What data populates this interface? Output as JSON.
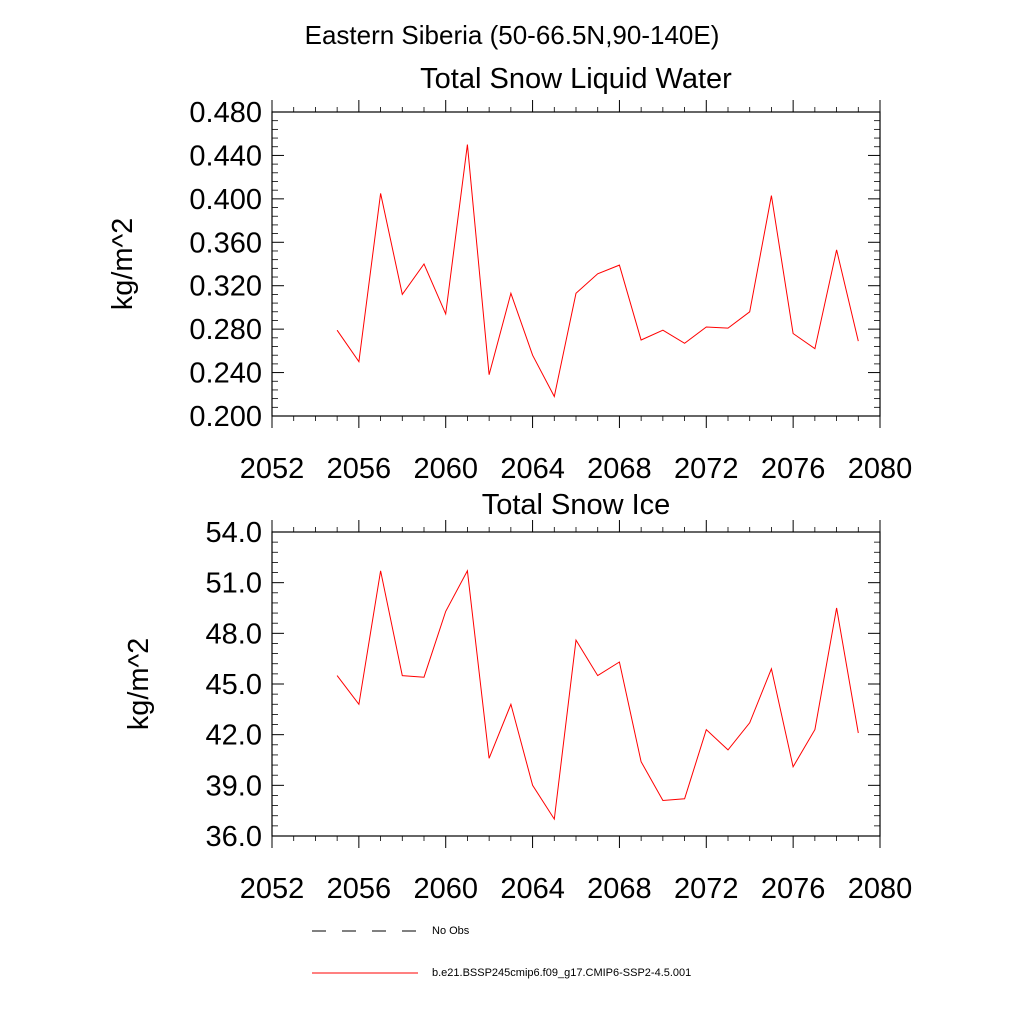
{
  "figure": {
    "title": "Eastern Siberia (50-66.5N,90-140E)"
  },
  "legend": {
    "placement": "bottom",
    "entries": [
      {
        "label": "No Obs",
        "style": "dashed",
        "color": "#000000"
      },
      {
        "label": "b.e21.BSSP245cmip6.f09_g17.CMIP6-SSP2-4.5.001",
        "style": "solid",
        "color": "#ff0000"
      }
    ]
  },
  "chart_data": [
    {
      "type": "line",
      "title": "Total Snow Liquid Water",
      "xlabel": "",
      "ylabel": "kg/m^2",
      "xlim": [
        2052,
        2080
      ],
      "ylim": [
        0.2,
        0.48
      ],
      "xticks": [
        2052,
        2056,
        2060,
        2064,
        2068,
        2072,
        2076,
        2080
      ],
      "xtick_labels": [
        "2052",
        "2056",
        "2060",
        "2064",
        "2068",
        "2072",
        "2076",
        "2080"
      ],
      "yticks": [
        0.2,
        0.24,
        0.28,
        0.32,
        0.36,
        0.4,
        0.44,
        0.48
      ],
      "ytick_labels": [
        "0.200",
        "0.240",
        "0.280",
        "0.320",
        "0.360",
        "0.400",
        "0.440",
        "0.480"
      ],
      "grid": false,
      "series": [
        {
          "color": "#ff0000",
          "x": [
            2055,
            2056,
            2057,
            2058,
            2059,
            2060,
            2061,
            2062,
            2063,
            2064,
            2065,
            2066,
            2067,
            2068,
            2069,
            2070,
            2071,
            2072,
            2073,
            2074,
            2075,
            2076,
            2077,
            2078,
            2079
          ],
          "values": [
            0.279,
            0.25,
            0.405,
            0.312,
            0.34,
            0.294,
            0.45,
            0.238,
            0.313,
            0.256,
            0.218,
            0.313,
            0.331,
            0.339,
            0.27,
            0.279,
            0.267,
            0.282,
            0.281,
            0.296,
            0.403,
            0.276,
            0.262,
            0.353,
            0.269
          ]
        }
      ]
    },
    {
      "type": "line",
      "title": "Total Snow Ice",
      "xlabel": "",
      "ylabel": "kg/m^2",
      "xlim": [
        2052,
        2080
      ],
      "ylim": [
        36.0,
        54.0
      ],
      "xticks": [
        2052,
        2056,
        2060,
        2064,
        2068,
        2072,
        2076,
        2080
      ],
      "xtick_labels": [
        "2052",
        "2056",
        "2060",
        "2064",
        "2068",
        "2072",
        "2076",
        "2080"
      ],
      "yticks": [
        36.0,
        39.0,
        42.0,
        45.0,
        48.0,
        51.0,
        54.0
      ],
      "ytick_labels": [
        "36.0",
        "39.0",
        "42.0",
        "45.0",
        "48.0",
        "51.0",
        "54.0"
      ],
      "grid": false,
      "series": [
        {
          "color": "#ff0000",
          "x": [
            2055,
            2056,
            2057,
            2058,
            2059,
            2060,
            2061,
            2062,
            2063,
            2064,
            2065,
            2066,
            2067,
            2068,
            2069,
            2070,
            2071,
            2072,
            2073,
            2074,
            2075,
            2076,
            2077,
            2078,
            2079
          ],
          "values": [
            45.5,
            43.8,
            51.7,
            45.5,
            45.4,
            49.3,
            51.7,
            40.6,
            43.8,
            39.0,
            37.0,
            47.6,
            45.5,
            46.3,
            40.4,
            38.1,
            38.2,
            42.3,
            41.1,
            42.7,
            45.9,
            40.1,
            42.3,
            49.5,
            42.1
          ]
        }
      ]
    }
  ]
}
